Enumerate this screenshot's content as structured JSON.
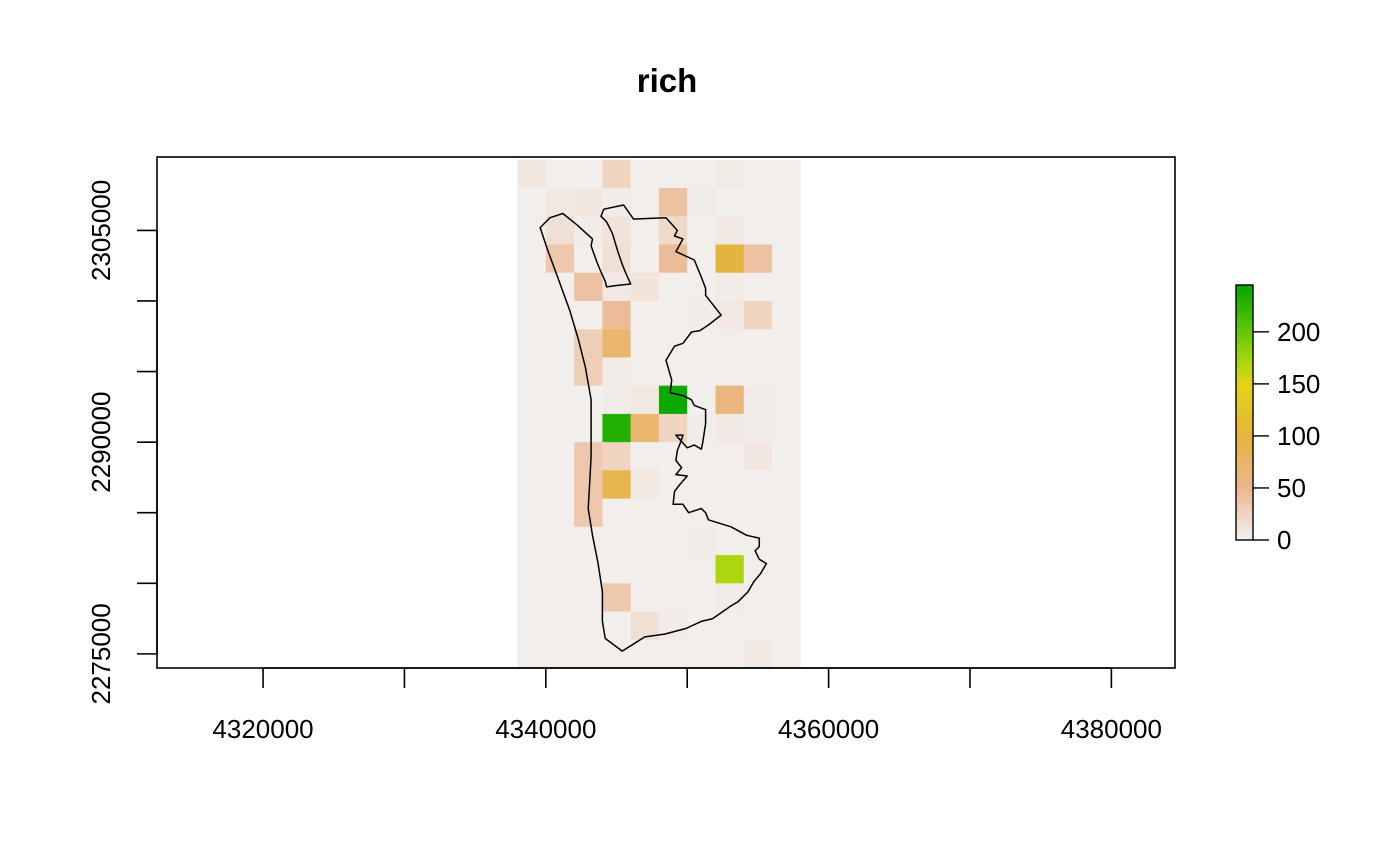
{
  "chart_data": {
    "type": "heatmap",
    "title": "rich",
    "xlabel": "",
    "ylabel": "",
    "xlim": [
      4312500,
      4384500
    ],
    "ylim": [
      2274000,
      2310200
    ],
    "x_ticks": [
      4320000,
      4330000,
      4340000,
      4350000,
      4360000,
      4370000,
      4380000
    ],
    "x_tick_labels": [
      "4320000",
      "",
      "4340000",
      "",
      "4360000",
      "",
      "4380000"
    ],
    "y_ticks": [
      2275000,
      2280000,
      2285000,
      2290000,
      2295000,
      2300000,
      2305000
    ],
    "y_tick_labels": [
      "2275000",
      "",
      "",
      "2290000",
      "",
      "",
      "2305000"
    ],
    "grid": false,
    "cell_size": 2000,
    "raster_x_range": [
      4338000,
      4358000
    ],
    "raster_y_range": [
      2274000,
      2310000
    ],
    "cell_values_note_rows_top_to_bottom": "each row lists 10 cell values from west to east",
    "cells": [
      [
        10,
        3,
        3,
        25,
        3,
        3,
        3,
        6,
        3,
        3
      ],
      [
        3,
        8,
        10,
        5,
        3,
        40,
        5,
        3,
        3,
        3
      ],
      [
        3,
        15,
        5,
        12,
        3,
        20,
        3,
        8,
        3,
        3
      ],
      [
        3,
        35,
        3,
        15,
        3,
        45,
        3,
        100,
        40,
        3
      ],
      [
        3,
        3,
        40,
        8,
        12,
        3,
        3,
        5,
        3,
        3
      ],
      [
        3,
        3,
        3,
        45,
        3,
        3,
        5,
        8,
        25,
        3
      ],
      [
        3,
        3,
        30,
        70,
        3,
        3,
        3,
        3,
        3,
        3
      ],
      [
        3,
        3,
        30,
        5,
        3,
        3,
        3,
        3,
        3,
        3
      ],
      [
        3,
        3,
        3,
        5,
        8,
        240,
        3,
        60,
        5,
        3
      ],
      [
        3,
        3,
        3,
        230,
        70,
        25,
        5,
        8,
        5,
        3
      ],
      [
        3,
        3,
        35,
        25,
        3,
        3,
        3,
        3,
        10,
        3
      ],
      [
        3,
        3,
        35,
        90,
        8,
        3,
        3,
        3,
        3,
        3
      ],
      [
        3,
        3,
        35,
        3,
        3,
        3,
        3,
        3,
        3,
        3
      ],
      [
        3,
        3,
        3,
        3,
        3,
        3,
        5,
        3,
        3,
        3
      ],
      [
        3,
        3,
        3,
        3,
        3,
        3,
        3,
        170,
        3,
        3
      ],
      [
        3,
        3,
        3,
        35,
        3,
        3,
        3,
        5,
        3,
        3
      ],
      [
        3,
        3,
        3,
        3,
        15,
        5,
        3,
        3,
        3,
        3
      ],
      [
        3,
        3,
        3,
        3,
        3,
        3,
        3,
        3,
        8,
        3
      ]
    ],
    "legend": {
      "placement": "right",
      "range": [
        0,
        245
      ],
      "ticks": [
        0,
        50,
        100,
        150,
        200
      ],
      "tick_labels": [
        "0",
        "50",
        "100",
        "150",
        "200"
      ],
      "color_stops": [
        {
          "value": 0,
          "color": "#f2f2f2"
        },
        {
          "value": 50,
          "color": "#ebb68e"
        },
        {
          "value": 100,
          "color": "#e4b53e"
        },
        {
          "value": 150,
          "color": "#e2d513"
        },
        {
          "value": 175,
          "color": "#9ed60e"
        },
        {
          "value": 245,
          "color": "#00a600"
        }
      ]
    },
    "outline_polygon": [
      [
        4344100,
        2306500
      ],
      [
        4345500,
        2306800
      ],
      [
        4346200,
        2305800
      ],
      [
        4348500,
        2305900
      ],
      [
        4349300,
        2305000
      ],
      [
        4349100,
        2304600
      ],
      [
        4349700,
        2304400
      ],
      [
        4349200,
        2303500
      ],
      [
        4350500,
        2302900
      ],
      [
        4351000,
        2301700
      ],
      [
        4351300,
        2300900
      ],
      [
        4351300,
        2300400
      ],
      [
        4352400,
        2299000
      ],
      [
        4351500,
        2298300
      ],
      [
        4350900,
        2297900
      ],
      [
        4350300,
        2297800
      ],
      [
        4349700,
        2297000
      ],
      [
        4349100,
        2296800
      ],
      [
        4348500,
        2295800
      ],
      [
        4348900,
        2294400
      ],
      [
        4348800,
        2293500
      ],
      [
        4349700,
        2293300
      ],
      [
        4350300,
        2293000
      ],
      [
        4350500,
        2292600
      ],
      [
        4351300,
        2292300
      ],
      [
        4351300,
        2291300
      ],
      [
        4351100,
        2290000
      ],
      [
        4351000,
        2289500
      ],
      [
        4350500,
        2289800
      ],
      [
        4350000,
        2289600
      ],
      [
        4349200,
        2290500
      ],
      [
        4349700,
        2290500
      ],
      [
        4349500,
        2289900
      ],
      [
        4349300,
        2289400
      ],
      [
        4349200,
        2288700
      ],
      [
        4349600,
        2288200
      ],
      [
        4349200,
        2287700
      ],
      [
        4350000,
        2287600
      ],
      [
        4349400,
        2286900
      ],
      [
        4349100,
        2286500
      ],
      [
        4349000,
        2285600
      ],
      [
        4349700,
        2285600
      ],
      [
        4350100,
        2285000
      ],
      [
        4351000,
        2285300
      ],
      [
        4351300,
        2285000
      ],
      [
        4351500,
        2284500
      ],
      [
        4351800,
        2284400
      ],
      [
        4353100,
        2284000
      ],
      [
        4354200,
        2283400
      ],
      [
        4355100,
        2283200
      ],
      [
        4355100,
        2282600
      ],
      [
        4354800,
        2282300
      ],
      [
        4355000,
        2281900
      ],
      [
        4355100,
        2281700
      ],
      [
        4355600,
        2281400
      ],
      [
        4355200,
        2280700
      ],
      [
        4354700,
        2280100
      ],
      [
        4354300,
        2279400
      ],
      [
        4353600,
        2278700
      ],
      [
        4353100,
        2278400
      ],
      [
        4351800,
        2277500
      ],
      [
        4351000,
        2277300
      ],
      [
        4349900,
        2276800
      ],
      [
        4348400,
        2276400
      ],
      [
        4347000,
        2276200
      ],
      [
        4345400,
        2275200
      ],
      [
        4344200,
        2276100
      ],
      [
        4344000,
        2277300
      ],
      [
        4344000,
        2279400
      ],
      [
        4343700,
        2281400
      ],
      [
        4343300,
        2283400
      ],
      [
        4343000,
        2285300
      ],
      [
        4343100,
        2287000
      ],
      [
        4343200,
        2289000
      ],
      [
        4343200,
        2291000
      ],
      [
        4343200,
        2293000
      ],
      [
        4342800,
        2295300
      ],
      [
        4342300,
        2297300
      ],
      [
        4341700,
        2299300
      ],
      [
        4340800,
        2301800
      ],
      [
        4340100,
        2303700
      ],
      [
        4339600,
        2305200
      ],
      [
        4340300,
        2305900
      ],
      [
        4341200,
        2306200
      ],
      [
        4342200,
        2305400
      ],
      [
        4343300,
        2304400
      ],
      [
        4343200,
        2303900
      ],
      [
        4343600,
        2302800
      ],
      [
        4343800,
        2302300
      ],
      [
        4344200,
        2301400
      ],
      [
        4344300,
        2301000
      ],
      [
        4345000,
        2301100
      ],
      [
        4346000,
        2301200
      ],
      [
        4345600,
        2302100
      ],
      [
        4345400,
        2302600
      ],
      [
        4345100,
        2303500
      ],
      [
        4344700,
        2304800
      ],
      [
        4344300,
        2305600
      ],
      [
        4343900,
        2306000
      ],
      [
        4344100,
        2306500
      ]
    ]
  }
}
